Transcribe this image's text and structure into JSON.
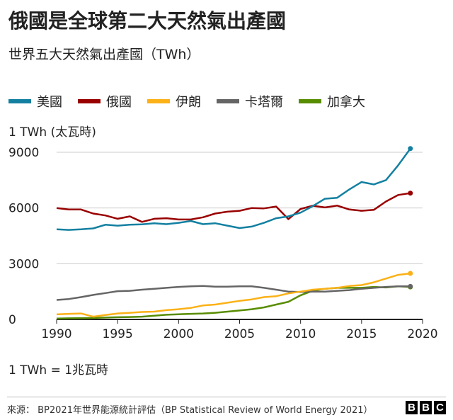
{
  "header": {
    "title": "俄國是全球第二大天然氣出產國",
    "subtitle": "世界五大天然氣出產國（TWh）"
  },
  "unit_label": "1 TWh (太瓦時)",
  "note": "1 TWh = 1兆瓦時",
  "footer": {
    "source": "來源： BP2021年世界能源統計評估（BP Statistical Review of World Energy 2021）",
    "logo_letters": [
      "B",
      "B",
      "C"
    ]
  },
  "chart_data": {
    "type": "line",
    "title": "俄國是全球第二大天然氣出產國",
    "subtitle": "世界五大天然氣出產國（TWh）",
    "xlabel": "",
    "ylabel": "1 TWh (太瓦時)",
    "xlim": [
      1990,
      2020
    ],
    "ylim": [
      0,
      9000
    ],
    "x_ticks": [
      "1990",
      "1995",
      "2000",
      "2005",
      "2010",
      "2015",
      "2020"
    ],
    "y_ticks": [
      "0",
      "3000",
      "6000",
      "9000"
    ],
    "legend_position": "top",
    "x": [
      1990,
      1991,
      1992,
      1993,
      1994,
      1995,
      1996,
      1997,
      1998,
      1999,
      2000,
      2001,
      2002,
      2003,
      2004,
      2005,
      2006,
      2007,
      2008,
      2009,
      2010,
      2011,
      2012,
      2013,
      2014,
      2015,
      2016,
      2017,
      2018,
      2019
    ],
    "series": [
      {
        "name": "美國",
        "color": "#1380a1",
        "values": [
          4850,
          4820,
          4850,
          4900,
          5100,
          5050,
          5100,
          5120,
          5180,
          5130,
          5200,
          5300,
          5130,
          5180,
          5050,
          4920,
          5000,
          5200,
          5450,
          5550,
          5750,
          6100,
          6500,
          6550,
          7000,
          7400,
          7270,
          7500,
          8300,
          9200
        ]
      },
      {
        "name": "俄國",
        "color": "#990000",
        "values": [
          6000,
          5920,
          5920,
          5700,
          5600,
          5420,
          5550,
          5250,
          5420,
          5450,
          5380,
          5380,
          5500,
          5700,
          5800,
          5850,
          6000,
          5980,
          6080,
          5400,
          5950,
          6120,
          6030,
          6130,
          5920,
          5850,
          5900,
          6350,
          6700,
          6800
        ]
      },
      {
        "name": "伊朗",
        "color": "#fbb117",
        "values": [
          270,
          300,
          320,
          150,
          240,
          320,
          360,
          400,
          420,
          500,
          550,
          620,
          750,
          800,
          900,
          1000,
          1080,
          1200,
          1250,
          1400,
          1500,
          1600,
          1650,
          1700,
          1800,
          1850,
          2000,
          2200,
          2400,
          2480
        ]
      },
      {
        "name": "卡塔爾",
        "color": "#656565",
        "values": [
          1050,
          1100,
          1200,
          1320,
          1420,
          1520,
          1540,
          1600,
          1650,
          1700,
          1750,
          1780,
          1800,
          1760,
          1760,
          1780,
          1780,
          1700,
          1600,
          1500,
          1480,
          1500,
          1500,
          1540,
          1580,
          1650,
          1700,
          1750,
          1780,
          1780
        ]
      },
      {
        "name": "加拿大",
        "color": "#588c00",
        "values": [
          50,
          60,
          70,
          80,
          100,
          120,
          130,
          150,
          200,
          250,
          280,
          300,
          320,
          360,
          420,
          480,
          550,
          650,
          800,
          950,
          1300,
          1550,
          1650,
          1700,
          1700,
          1700,
          1750,
          1720,
          1780,
          1750
        ]
      }
    ]
  }
}
